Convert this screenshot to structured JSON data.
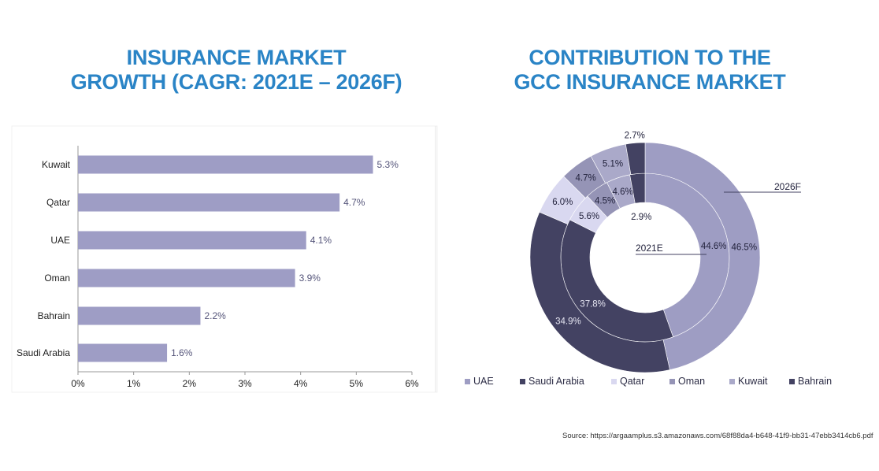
{
  "source": "Source:  https://argaamplus.s3.amazonaws.com/68f88da4-b648-41f9-bb31-47ebb3414cb6.pdf",
  "chart_data": [
    {
      "type": "bar",
      "orientation": "horizontal",
      "title": "INSURANCE MARKET GROWTH (CAGR: 2021E – 2026F)",
      "title_lines": [
        "INSURANCE MARKET",
        "GROWTH (CAGR: 2021E – 2026F)"
      ],
      "categories": [
        "Kuwait",
        "Qatar",
        "UAE",
        "Oman",
        "Bahrain",
        "Saudi Arabia"
      ],
      "values": [
        5.3,
        4.7,
        4.1,
        3.9,
        2.2,
        1.6
      ],
      "data_labels": [
        "5.3%",
        "4.7%",
        "4.1%",
        "3.9%",
        "2.2%",
        "1.6%"
      ],
      "xlim": [
        0,
        6
      ],
      "x_ticks": [
        "0%",
        "1%",
        "2%",
        "3%",
        "4%",
        "5%",
        "6%"
      ],
      "grid": false,
      "bar_color": "#9e9dc5"
    },
    {
      "type": "pie",
      "variant": "donut-two-ring",
      "title": "CONTRIBUTION TO THE GCC INSURANCE MARKET",
      "title_lines": [
        "CONTRIBUTION TO THE",
        "GCC INSURANCE MARKET"
      ],
      "categories": [
        "UAE",
        "Saudi Arabia",
        "Qatar",
        "Oman",
        "Kuwait",
        "Bahrain"
      ],
      "colors": [
        "#9e9dc3",
        "#434262",
        "#d9d8f0",
        "#9594b6",
        "#aaa9c9",
        "#434262"
      ],
      "series": [
        {
          "name": "2021E",
          "ring": "inner",
          "values": [
            44.6,
            37.8,
            5.6,
            4.5,
            4.6,
            2.9
          ],
          "labels": [
            "44.6%",
            "37.8%",
            "5.6%",
            "4.5%",
            "4.6%",
            "2.9%"
          ]
        },
        {
          "name": "2026F",
          "ring": "outer",
          "values": [
            46.5,
            34.9,
            6.0,
            4.7,
            5.1,
            2.7
          ],
          "labels": [
            "46.5%",
            "34.9%",
            "6.0%",
            "4.7%",
            "5.1%",
            "2.7%"
          ]
        }
      ],
      "legend_position": "bottom"
    }
  ]
}
